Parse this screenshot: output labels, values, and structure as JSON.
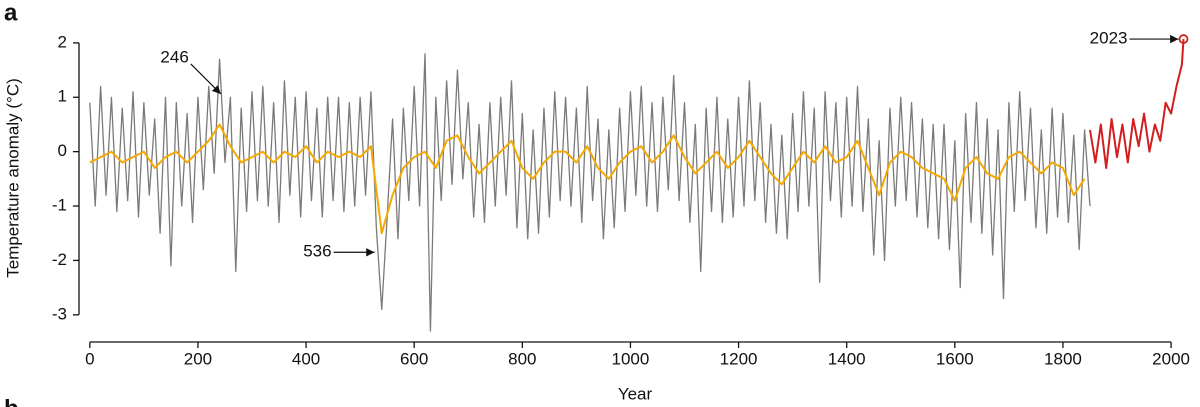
{
  "panel_labels": [
    "a",
    "b"
  ],
  "chart_data": {
    "type": "line",
    "xlabel": "Year",
    "ylabel": "Temperature anomaly (°C)",
    "xlim": [
      -20,
      2035
    ],
    "ylim": [
      -3.5,
      2.2
    ],
    "xticks": [
      0,
      200,
      400,
      600,
      800,
      1000,
      1200,
      1400,
      1600,
      1800,
      2000
    ],
    "yticks": [
      -3,
      -2,
      -1,
      0,
      1,
      2
    ],
    "series": [
      {
        "color": "#7a7a7a",
        "x": [
          0,
          10,
          20,
          30,
          40,
          50,
          60,
          70,
          80,
          90,
          100,
          110,
          120,
          130,
          140,
          150,
          160,
          170,
          180,
          190,
          200,
          210,
          220,
          230,
          240,
          250,
          260,
          270,
          280,
          290,
          300,
          310,
          320,
          330,
          340,
          350,
          360,
          370,
          380,
          390,
          400,
          410,
          420,
          430,
          440,
          450,
          460,
          470,
          480,
          490,
          500,
          510,
          520,
          530,
          540,
          550,
          560,
          570,
          580,
          590,
          600,
          610,
          620,
          630,
          640,
          650,
          660,
          670,
          680,
          690,
          700,
          710,
          720,
          730,
          740,
          750,
          760,
          770,
          780,
          790,
          800,
          810,
          820,
          830,
          840,
          850,
          860,
          870,
          880,
          890,
          900,
          910,
          920,
          930,
          940,
          950,
          960,
          970,
          980,
          990,
          1000,
          1010,
          1020,
          1030,
          1040,
          1050,
          1060,
          1070,
          1080,
          1090,
          1100,
          1110,
          1120,
          1130,
          1140,
          1150,
          1160,
          1170,
          1180,
          1190,
          1200,
          1210,
          1220,
          1230,
          1240,
          1250,
          1260,
          1270,
          1280,
          1290,
          1300,
          1310,
          1320,
          1330,
          1340,
          1350,
          1360,
          1370,
          1380,
          1390,
          1400,
          1410,
          1420,
          1430,
          1440,
          1450,
          1460,
          1470,
          1480,
          1490,
          1500,
          1510,
          1520,
          1530,
          1540,
          1550,
          1560,
          1570,
          1580,
          1590,
          1600,
          1610,
          1620,
          1630,
          1640,
          1650,
          1660,
          1670,
          1680,
          1690,
          1700,
          1710,
          1720,
          1730,
          1740,
          1750,
          1760,
          1770,
          1780,
          1790,
          1800,
          1810,
          1820,
          1830,
          1840,
          1850
        ],
        "values": [
          0.9,
          -1.0,
          1.2,
          -0.8,
          1.0,
          -1.1,
          0.8,
          -0.9,
          1.1,
          -1.2,
          0.9,
          -0.8,
          0.6,
          -1.5,
          1.0,
          -2.1,
          0.9,
          -1.0,
          0.7,
          -1.3,
          1.0,
          -0.7,
          1.2,
          -0.4,
          1.7,
          -0.2,
          1.0,
          -2.2,
          0.8,
          -1.1,
          1.1,
          -0.9,
          1.2,
          -1.0,
          0.9,
          -1.3,
          1.3,
          -0.8,
          1.0,
          -1.2,
          1.1,
          -0.9,
          0.8,
          -1.2,
          1.0,
          -0.9,
          1.0,
          -1.1,
          0.9,
          -1.0,
          1.0,
          -0.8,
          1.1,
          -1.4,
          -2.9,
          -1.2,
          0.6,
          -1.6,
          0.8,
          -0.9,
          1.2,
          -1.0,
          1.8,
          -3.3,
          1.0,
          -0.9,
          1.3,
          -0.6,
          1.5,
          -0.5,
          0.9,
          -1.2,
          0.5,
          -1.3,
          0.9,
          -1.0,
          1.0,
          -0.8,
          1.3,
          -1.4,
          0.7,
          -1.6,
          0.4,
          -1.5,
          0.8,
          -1.2,
          1.1,
          -0.9,
          1.0,
          -1.0,
          0.8,
          -1.3,
          1.2,
          -0.9,
          0.6,
          -1.6,
          0.4,
          -1.4,
          0.8,
          -1.1,
          1.1,
          -0.8,
          1.2,
          -1.0,
          0.9,
          -1.1,
          1.0,
          -0.7,
          1.4,
          -0.9,
          0.9,
          -1.3,
          0.5,
          -2.2,
          0.8,
          -1.1,
          1.0,
          -1.3,
          0.6,
          -1.2,
          1.0,
          -1.0,
          1.3,
          -0.9,
          0.9,
          -1.3,
          0.5,
          -1.5,
          0.3,
          -1.6,
          0.7,
          -1.1,
          1.1,
          -1.0,
          0.8,
          -2.4,
          1.1,
          -0.9,
          0.9,
          -1.2,
          1.0,
          -1.0,
          1.2,
          -1.1,
          0.6,
          -1.9,
          0.2,
          -2.0,
          0.8,
          -1.0,
          1.0,
          -0.9,
          0.9,
          -1.2,
          0.6,
          -1.4,
          0.5,
          -1.6,
          0.5,
          -1.8,
          0.2,
          -2.5,
          0.7,
          -1.3,
          0.9,
          -1.5,
          0.6,
          -1.9,
          0.4,
          -2.7,
          0.9,
          -1.1,
          1.1,
          -0.9,
          0.8,
          -1.4,
          0.4,
          -1.5,
          0.8,
          -1.2,
          0.7,
          -1.3,
          0.3,
          -1.8,
          0.4,
          -1.0
        ]
      },
      {
        "color": "#f5a800",
        "x": [
          0,
          20,
          40,
          60,
          80,
          100,
          120,
          140,
          160,
          180,
          200,
          220,
          240,
          260,
          280,
          300,
          320,
          340,
          360,
          380,
          400,
          420,
          440,
          460,
          480,
          500,
          520,
          540,
          560,
          580,
          600,
          620,
          640,
          660,
          680,
          700,
          720,
          740,
          760,
          780,
          800,
          820,
          840,
          860,
          880,
          900,
          920,
          940,
          960,
          980,
          1000,
          1020,
          1040,
          1060,
          1080,
          1100,
          1120,
          1140,
          1160,
          1180,
          1200,
          1220,
          1240,
          1260,
          1280,
          1300,
          1320,
          1340,
          1360,
          1380,
          1400,
          1420,
          1440,
          1460,
          1480,
          1500,
          1520,
          1540,
          1560,
          1580,
          1600,
          1620,
          1640,
          1660,
          1680,
          1700,
          1720,
          1740,
          1760,
          1780,
          1800,
          1820,
          1840
        ],
        "values": [
          -0.2,
          -0.1,
          0,
          -0.2,
          -0.1,
          0,
          -0.3,
          -0.1,
          0,
          -0.2,
          0,
          0.2,
          0.5,
          0.1,
          -0.2,
          -0.1,
          0,
          -0.2,
          0,
          -0.1,
          0.1,
          -0.2,
          0,
          -0.1,
          0,
          -0.1,
          0.1,
          -1.5,
          -0.8,
          -0.3,
          -0.1,
          0,
          -0.3,
          0.2,
          0.3,
          -0.1,
          -0.4,
          -0.2,
          0,
          0.2,
          -0.3,
          -0.5,
          -0.2,
          0,
          0,
          -0.2,
          0.1,
          -0.3,
          -0.5,
          -0.2,
          0,
          0.1,
          -0.2,
          0,
          0.3,
          -0.1,
          -0.4,
          -0.2,
          0,
          -0.3,
          -0.1,
          0.2,
          -0.1,
          -0.4,
          -0.6,
          -0.3,
          0,
          -0.2,
          0.1,
          -0.2,
          -0.1,
          0.2,
          -0.3,
          -0.8,
          -0.2,
          0,
          -0.1,
          -0.3,
          -0.4,
          -0.5,
          -0.9,
          -0.3,
          -0.1,
          -0.4,
          -0.5,
          -0.1,
          0,
          -0.2,
          -0.4,
          -0.2,
          -0.3,
          -0.8,
          -0.5
        ]
      },
      {
        "color": "#d11f1f",
        "x": [
          1850,
          1860,
          1870,
          1880,
          1890,
          1900,
          1910,
          1920,
          1930,
          1940,
          1950,
          1960,
          1970,
          1980,
          1990,
          2000,
          2010,
          2020,
          2023
        ],
        "values": [
          0.4,
          -0.2,
          0.5,
          -0.3,
          0.6,
          -0.1,
          0.5,
          -0.2,
          0.6,
          0.1,
          0.7,
          0.0,
          0.5,
          0.2,
          0.9,
          0.7,
          1.2,
          1.6,
          2.07
        ]
      }
    ],
    "annotations": [
      {
        "text": "246",
        "x": 246,
        "y": 0.95
      },
      {
        "text": "536",
        "x": 536,
        "y": -1.85
      },
      {
        "text": "2023",
        "x": 2023,
        "y": 2.07
      }
    ]
  }
}
